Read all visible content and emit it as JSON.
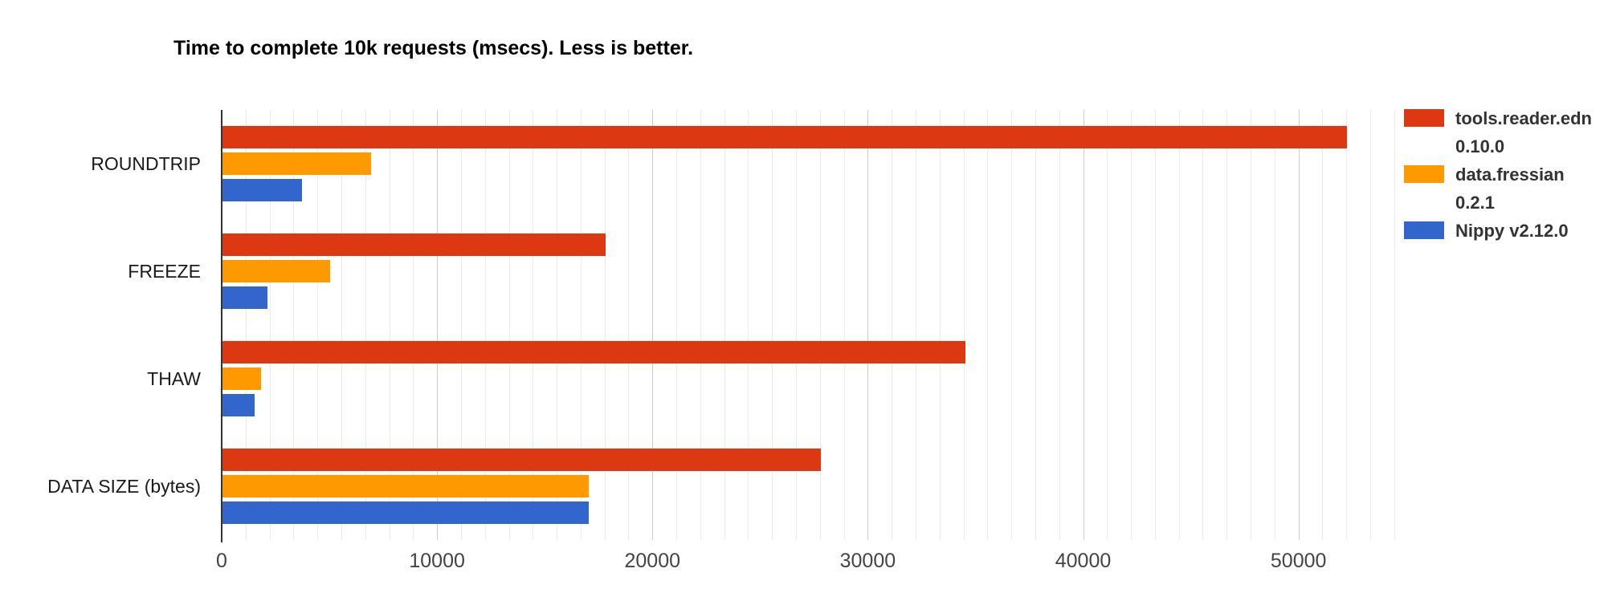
{
  "title": "Time to complete 10k requests (msecs). Less is better.",
  "colors": {
    "series_red": "#dc3912",
    "series_orange": "#ff9900",
    "series_blue": "#3366cc",
    "gridline_minor": "#ebebeb",
    "gridline_major": "#cccccc",
    "axis_line": "#333333",
    "tick_text": "#444444",
    "background": "#ffffff"
  },
  "chart_data": {
    "type": "bar",
    "orientation": "horizontal",
    "title": "Time to complete 10k requests (msecs). Less is better.",
    "categories": [
      "ROUNDTRIP",
      "FREEZE",
      "THAW",
      "DATA SIZE (bytes)"
    ],
    "series": [
      {
        "name": "tools.reader.edn 0.10.0",
        "label_lines": [
          "tools.reader.edn",
          "0.10.0"
        ],
        "color": "#dc3912",
        "values": [
          52200,
          17800,
          34500,
          27800
        ]
      },
      {
        "name": "data.fressian 0.2.1",
        "label_lines": [
          "data.fressian",
          "0.2.1"
        ],
        "color": "#ff9900",
        "values": [
          6900,
          5000,
          1800,
          17000
        ]
      },
      {
        "name": "Nippy v2.12.0",
        "label_lines": [
          "Nippy v2.12.0"
        ],
        "color": "#3366cc",
        "values": [
          3700,
          2100,
          1500,
          17000
        ]
      }
    ],
    "x_ticks": [
      0,
      10000,
      20000,
      30000,
      40000,
      50000
    ],
    "x_tick_labels": [
      "0",
      "10000",
      "20000",
      "30000",
      "40000",
      "50000"
    ],
    "xlim": [
      0,
      54600
    ],
    "minor_grid_step": 1111.11,
    "grid": true,
    "legend_position": "right",
    "xlabel": "",
    "ylabel": ""
  }
}
